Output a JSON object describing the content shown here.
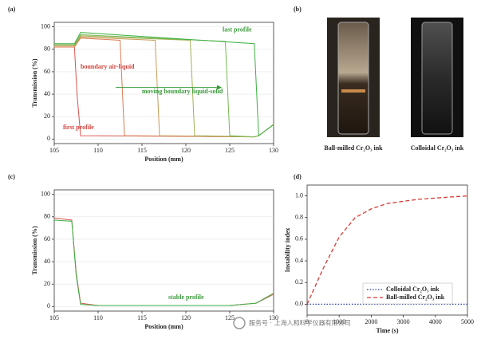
{
  "chart_data": [
    {
      "type": "line",
      "label": "(a)",
      "xlabel": "Position (mm)",
      "ylabel": "Transmission (%)",
      "xlim": [
        105,
        130
      ],
      "xticks": [
        105,
        110,
        115,
        120,
        125,
        130
      ],
      "ylim": [
        -4,
        104
      ],
      "yticks": [
        0,
        20,
        40,
        60,
        80,
        100
      ],
      "grid": true,
      "series": [
        {
          "color": "#d9534f",
          "x": [
            105,
            107.3,
            107.6,
            108,
            127.8,
            128.3,
            130
          ],
          "values": [
            82,
            82,
            40,
            3,
            2,
            3,
            13
          ]
        },
        {
          "color": "#dc7a52",
          "x": [
            105,
            107.3,
            108,
            112.5,
            113,
            127.8,
            128.3,
            130
          ],
          "values": [
            82,
            82,
            90,
            88,
            3,
            2,
            3,
            13
          ]
        },
        {
          "color": "#c99a55",
          "x": [
            105,
            107.3,
            108,
            116.5,
            117,
            127.8,
            128.3,
            130
          ],
          "values": [
            83,
            83,
            91,
            88,
            3,
            2,
            3,
            13
          ]
        },
        {
          "color": "#a3b055",
          "x": [
            105,
            107.3,
            108,
            120.5,
            121,
            127.8,
            128.3,
            130
          ],
          "values": [
            84,
            84,
            92,
            88,
            3,
            2,
            3,
            13
          ]
        },
        {
          "color": "#76b852",
          "x": [
            105,
            107.3,
            108,
            124.5,
            125,
            127.8,
            128.3,
            130
          ],
          "values": [
            84,
            84,
            93,
            87,
            3,
            2,
            3,
            13
          ]
        },
        {
          "color": "#3cb043",
          "x": [
            105,
            107.3,
            108,
            127.8,
            128.3,
            130
          ],
          "values": [
            85,
            85,
            95,
            85,
            3,
            13
          ]
        }
      ],
      "annotations": [
        {
          "text": "last profile",
          "color": "#3a9a3a"
        },
        {
          "text": "boundary air-liquid",
          "color": "#d0443e"
        },
        {
          "text": "moving boundary liquid-solid",
          "color": "#3a9a3a"
        },
        {
          "text": "first profile",
          "color": "#d0443e"
        }
      ]
    },
    {
      "type": "line",
      "label": "(c)",
      "xlabel": "Position (mm)",
      "ylabel": "Transmission (%)",
      "xlim": [
        105,
        130
      ],
      "xticks": [
        105,
        110,
        115,
        120,
        125,
        130
      ],
      "ylim": [
        -4,
        104
      ],
      "yticks": [
        0,
        20,
        40,
        60,
        80,
        100
      ],
      "grid": true,
      "series": [
        {
          "color": "#d9534f",
          "x": [
            105,
            107,
            107.5,
            108,
            110,
            125,
            128,
            130
          ],
          "values": [
            79,
            77,
            30,
            3,
            1,
            1,
            3,
            11
          ]
        },
        {
          "color": "#3cb043",
          "x": [
            105,
            107,
            107.5,
            108,
            110,
            125,
            128,
            130
          ],
          "values": [
            77,
            76,
            28,
            2,
            1,
            1,
            3,
            12
          ]
        }
      ],
      "annotations": [
        {
          "text": "stable profile",
          "color": "#3a9a3a"
        }
      ]
    },
    {
      "type": "line",
      "label": "(d)",
      "xlabel": "Time (s)",
      "ylabel": "Instability index",
      "x": [
        0,
        500,
        1000,
        1500,
        2000,
        2500,
        3000,
        3500,
        4000,
        4500,
        5000
      ],
      "xlim": [
        0,
        5000
      ],
      "xticks": [
        0,
        1000,
        2000,
        3000,
        4000,
        5000
      ],
      "ylim": [
        -0.1,
        1.1
      ],
      "yticks": [
        {
          "value": 0,
          "label": "0.0"
        },
        {
          "value": 0.2,
          "label": "0.2"
        },
        {
          "value": 0.4,
          "label": "0.4"
        },
        {
          "value": 0.6,
          "label": "0.6"
        },
        {
          "value": 0.8,
          "label": "0.8"
        },
        {
          "value": 1,
          "label": "1.0"
        }
      ],
      "grid": false,
      "legend": "lower center",
      "series": [
        {
          "name": "Colloidal Cr₂O₃ ink",
          "color": "#2b3fa0",
          "dash": "dotted",
          "values": [
            0,
            0,
            0,
            0,
            0,
            0,
            0,
            0,
            0,
            0,
            0
          ]
        },
        {
          "name": "Ball-milled Cr₂O₃ ink",
          "color": "#d63a33",
          "dash": "dashed",
          "values": [
            0,
            0.33,
            0.62,
            0.8,
            0.88,
            0.93,
            0.95,
            0.97,
            0.98,
            0.99,
            1.0
          ]
        }
      ]
    }
  ],
  "images": {
    "label": "(b)",
    "items": [
      {
        "caption": "Ball-milled Cr₂O₃ ink"
      },
      {
        "caption": "Colloidal Cr₂O₃ ink"
      }
    ]
  },
  "watermark": "服务号 · 上海人和科学仪器有限公司"
}
